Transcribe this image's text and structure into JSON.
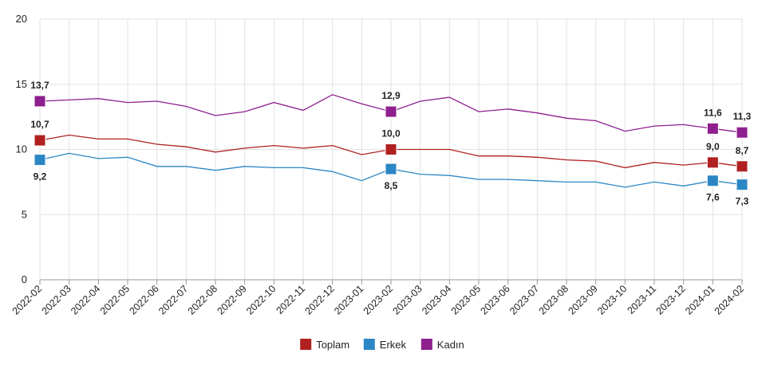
{
  "chart_data": {
    "type": "line",
    "title": "",
    "xlabel": "",
    "ylabel": "",
    "ylim": [
      0,
      20
    ],
    "yticks": [
      0,
      5,
      10,
      15,
      20
    ],
    "grid": true,
    "legend_position": "bottom-center",
    "categories": [
      "2022-02",
      "2022-03",
      "2022-04",
      "2022-05",
      "2022-06",
      "2022-07",
      "2022-08",
      "2022-09",
      "2022-10",
      "2022-11",
      "2022-12",
      "2023-01",
      "2023-02",
      "2023-03",
      "2023-04",
      "2023-05",
      "2023-06",
      "2023-07",
      "2023-08",
      "2023-09",
      "2023-10",
      "2023-11",
      "2023-12",
      "2024-01",
      "2024-02"
    ],
    "series": [
      {
        "name": "Toplam",
        "color": "#b02020",
        "values": [
          10.7,
          11.1,
          10.8,
          10.8,
          10.4,
          10.2,
          9.8,
          10.1,
          10.3,
          10.1,
          10.3,
          9.6,
          10.0,
          10.0,
          10.0,
          9.5,
          9.5,
          9.4,
          9.2,
          9.1,
          8.6,
          9.0,
          8.8,
          9.0,
          8.7
        ],
        "labels": [
          {
            "index": 0,
            "text": "10,7",
            "pos": "above"
          },
          {
            "index": 12,
            "text": "10,0",
            "pos": "above"
          },
          {
            "index": 23,
            "text": "9,0",
            "pos": "above"
          },
          {
            "index": 24,
            "text": "8,7",
            "pos": "above"
          }
        ]
      },
      {
        "name": "Erkek",
        "color": "#2b86c5",
        "values": [
          9.2,
          9.7,
          9.3,
          9.4,
          8.7,
          8.7,
          8.4,
          8.7,
          8.6,
          8.6,
          8.3,
          7.6,
          8.5,
          8.1,
          8.0,
          7.7,
          7.7,
          7.6,
          7.5,
          7.5,
          7.1,
          7.5,
          7.2,
          7.6,
          7.3
        ],
        "labels": [
          {
            "index": 0,
            "text": "9,2",
            "pos": "below"
          },
          {
            "index": 12,
            "text": "8,5",
            "pos": "below"
          },
          {
            "index": 23,
            "text": "7,6",
            "pos": "below"
          },
          {
            "index": 24,
            "text": "7,3",
            "pos": "below"
          }
        ]
      },
      {
        "name": "Kadın",
        "color": "#8e1f8e",
        "values": [
          13.7,
          13.8,
          13.9,
          13.6,
          13.7,
          13.3,
          12.6,
          12.9,
          13.6,
          13.0,
          14.2,
          13.5,
          12.9,
          13.7,
          14.0,
          12.9,
          13.1,
          12.8,
          12.4,
          12.2,
          11.4,
          11.8,
          11.9,
          11.6,
          11.3
        ],
        "labels": [
          {
            "index": 0,
            "text": "13,7",
            "pos": "above"
          },
          {
            "index": 12,
            "text": "12,9",
            "pos": "above"
          },
          {
            "index": 23,
            "text": "11,6",
            "pos": "above"
          },
          {
            "index": 24,
            "text": "11,3",
            "pos": "above"
          }
        ]
      }
    ],
    "markers_at_indices": [
      0,
      12,
      23,
      24
    ]
  }
}
